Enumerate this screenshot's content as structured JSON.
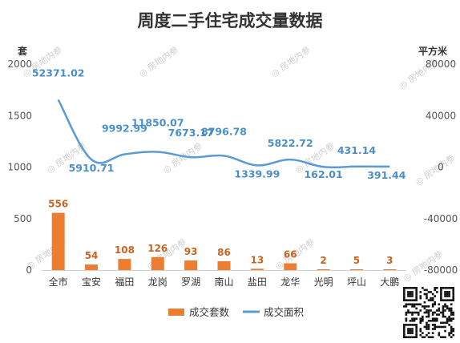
{
  "colors": {
    "bar": "#ed7d31",
    "line": "#5b9bd5",
    "bar_label": "#c8641f",
    "line_label": "#4a8fc8",
    "title": "#333333"
  },
  "watermark_text": "房地内参",
  "chart_data": {
    "type": "bar",
    "title": "周度二手住宅成交量数据",
    "categories": [
      "全市",
      "宝安",
      "福田",
      "龙岗",
      "罗湖",
      "南山",
      "盐田",
      "龙华",
      "光明",
      "坪山",
      "大鹏"
    ],
    "y_left_unit": "套",
    "y_right_unit": "平方米",
    "y_left_ticks": [
      "0",
      "500",
      "1000",
      "1500",
      "2000"
    ],
    "y_right_ticks": [
      "-80000",
      "-40000",
      "0",
      "40000",
      "80000"
    ],
    "ylim_left": [
      0,
      2000
    ],
    "ylim_right": [
      -80000,
      80000
    ],
    "grid": false,
    "legend_position": "bottom",
    "series": [
      {
        "name": "成交套数",
        "type": "bar",
        "axis": "left",
        "values": [
          556,
          54,
          108,
          126,
          93,
          86,
          13,
          66,
          2,
          5,
          3
        ],
        "labels": [
          "556",
          "54",
          "108",
          "126",
          "93",
          "86",
          "13",
          "66",
          "2",
          "5",
          "3"
        ]
      },
      {
        "name": "成交面积",
        "type": "line",
        "axis": "right",
        "smooth": true,
        "values": [
          52371.02,
          5910.71,
          9992.99,
          11850.07,
          7673.17,
          8796.78,
          1339.99,
          5822.72,
          162.01,
          431.14,
          391.44
        ],
        "labels": [
          "52371.02",
          "5910.71",
          "9992.99",
          "11850.07",
          "7673.17",
          "8796.78",
          "1339.99",
          "5822.72",
          "162.01",
          "431.14",
          "391.44"
        ]
      }
    ]
  }
}
